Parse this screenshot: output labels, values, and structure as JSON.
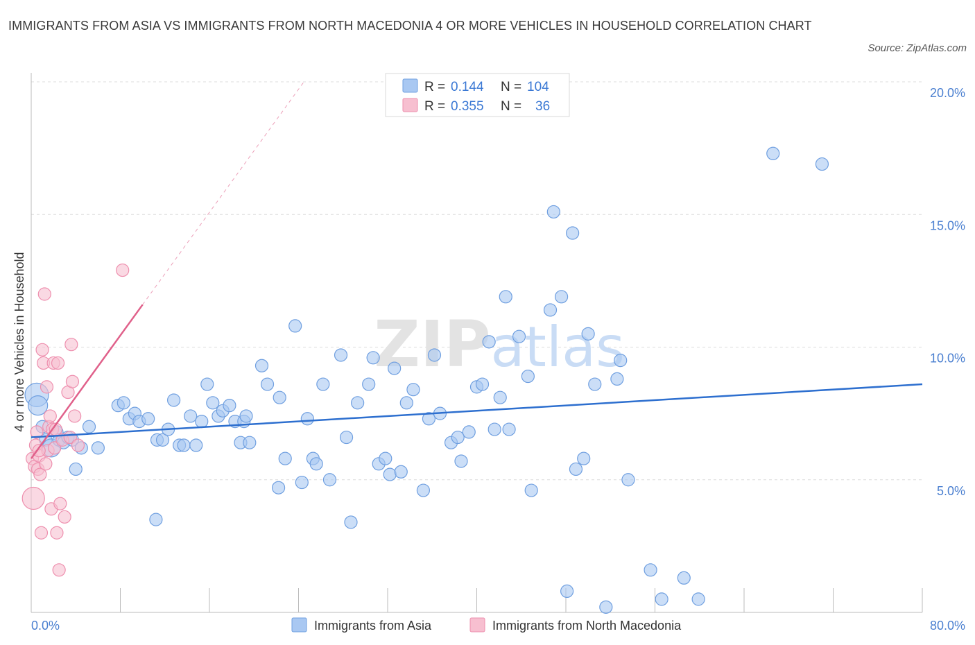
{
  "title": "IMMIGRANTS FROM ASIA VS IMMIGRANTS FROM NORTH MACEDONIA 4 OR MORE VEHICLES IN HOUSEHOLD CORRELATION CHART",
  "source": "Source: ZipAtlas.com",
  "watermark": "ZIPatlas",
  "colors": {
    "asia_fill": "#a9c8f2",
    "asia_stroke": "#6f9fe0",
    "asia_line": "#2d6fcf",
    "macedonia_fill": "#f7bfd0",
    "macedonia_stroke": "#ee8fae",
    "macedonia_line": "#e0608a",
    "tick_label": "#4a7fd0"
  },
  "legend": {
    "row1": {
      "r_label": "R =",
      "r_value": "0.144",
      "n_label": "N =",
      "n_value": "104"
    },
    "row2": {
      "r_label": "R =",
      "r_value": "0.355",
      "n_label": "N =",
      "n_value": "36"
    }
  },
  "bottom_legend": {
    "asia": "Immigrants from Asia",
    "macedonia": "Immigrants from North Macedonia"
  },
  "chart_data": {
    "type": "scatter",
    "title": "IMMIGRANTS FROM ASIA VS IMMIGRANTS FROM NORTH MACEDONIA 4 OR MORE VEHICLES IN HOUSEHOLD CORRELATION CHART",
    "xlabel": "",
    "ylabel": "4 or more Vehicles in Household",
    "xlim": [
      0,
      80
    ],
    "ylim": [
      0,
      20
    ],
    "x_tick_labels": [
      "0.0%",
      "80.0%"
    ],
    "y_ticks": [
      5,
      10,
      15,
      20
    ],
    "y_tick_labels": [
      "5.0%",
      "10.0%",
      "15.0%",
      "20.0%"
    ],
    "grid": true,
    "legend_position": "top-center",
    "series": [
      {
        "name": "Immigrants from Asia",
        "R": 0.144,
        "N": 104,
        "trend": {
          "x": [
            0,
            80
          ],
          "y": [
            6.6,
            8.6
          ]
        },
        "points": [
          [
            0.5,
            8.2
          ],
          [
            0.6,
            7.8
          ],
          [
            1.0,
            7.0
          ],
          [
            1.3,
            6.5
          ],
          [
            1.8,
            6.2
          ],
          [
            2.3,
            6.8
          ],
          [
            2.5,
            6.5
          ],
          [
            2.9,
            6.4
          ],
          [
            3.3,
            6.6
          ],
          [
            3.7,
            6.5
          ],
          [
            4.0,
            5.4
          ],
          [
            4.5,
            6.2
          ],
          [
            5.2,
            7.0
          ],
          [
            6.0,
            6.2
          ],
          [
            7.8,
            7.8
          ],
          [
            8.3,
            7.9
          ],
          [
            8.8,
            7.3
          ],
          [
            9.3,
            7.5
          ],
          [
            9.7,
            7.2
          ],
          [
            10.5,
            7.3
          ],
          [
            11.2,
            3.5
          ],
          [
            11.3,
            6.5
          ],
          [
            11.8,
            6.5
          ],
          [
            12.3,
            6.9
          ],
          [
            12.8,
            8.0
          ],
          [
            13.3,
            6.3
          ],
          [
            13.7,
            6.3
          ],
          [
            14.3,
            7.4
          ],
          [
            14.8,
            6.3
          ],
          [
            15.3,
            7.2
          ],
          [
            15.8,
            8.6
          ],
          [
            16.3,
            7.9
          ],
          [
            16.8,
            7.4
          ],
          [
            17.2,
            7.6
          ],
          [
            17.8,
            7.8
          ],
          [
            18.3,
            7.2
          ],
          [
            18.8,
            6.4
          ],
          [
            19.1,
            7.2
          ],
          [
            19.3,
            7.4
          ],
          [
            19.6,
            6.4
          ],
          [
            20.7,
            9.3
          ],
          [
            21.2,
            8.6
          ],
          [
            22.2,
            4.7
          ],
          [
            22.3,
            8.1
          ],
          [
            22.8,
            5.8
          ],
          [
            23.7,
            10.8
          ],
          [
            24.3,
            4.9
          ],
          [
            24.8,
            7.3
          ],
          [
            25.3,
            5.8
          ],
          [
            25.6,
            5.6
          ],
          [
            26.2,
            8.6
          ],
          [
            26.8,
            5.0
          ],
          [
            27.8,
            9.7
          ],
          [
            28.3,
            6.6
          ],
          [
            28.7,
            3.4
          ],
          [
            29.3,
            7.9
          ],
          [
            30.3,
            8.6
          ],
          [
            30.7,
            9.6
          ],
          [
            31.2,
            5.6
          ],
          [
            31.8,
            5.8
          ],
          [
            32.2,
            5.2
          ],
          [
            32.6,
            9.2
          ],
          [
            33.2,
            5.3
          ],
          [
            33.7,
            7.9
          ],
          [
            34.3,
            8.4
          ],
          [
            35.2,
            4.6
          ],
          [
            35.7,
            7.3
          ],
          [
            36.2,
            9.7
          ],
          [
            36.7,
            7.5
          ],
          [
            37.7,
            6.4
          ],
          [
            38.3,
            6.6
          ],
          [
            38.6,
            5.7
          ],
          [
            39.3,
            6.8
          ],
          [
            40.0,
            8.5
          ],
          [
            40.5,
            8.6
          ],
          [
            41.1,
            10.2
          ],
          [
            41.6,
            6.9
          ],
          [
            42.1,
            8.1
          ],
          [
            42.6,
            11.9
          ],
          [
            42.9,
            6.9
          ],
          [
            43.8,
            10.4
          ],
          [
            44.6,
            8.9
          ],
          [
            44.9,
            4.6
          ],
          [
            46.6,
            11.4
          ],
          [
            46.9,
            15.1
          ],
          [
            47.6,
            11.9
          ],
          [
            48.1,
            0.8
          ],
          [
            48.6,
            14.3
          ],
          [
            48.9,
            5.4
          ],
          [
            49.6,
            5.8
          ],
          [
            50.0,
            10.5
          ],
          [
            50.6,
            8.6
          ],
          [
            51.6,
            0.2
          ],
          [
            52.6,
            8.8
          ],
          [
            52.9,
            9.5
          ],
          [
            53.6,
            5.0
          ],
          [
            55.6,
            1.6
          ],
          [
            56.6,
            0.5
          ],
          [
            58.6,
            1.3
          ],
          [
            59.9,
            0.5
          ],
          [
            66.6,
            17.3
          ],
          [
            71.0,
            16.9
          ]
        ]
      },
      {
        "name": "Immigrants from North Macedonia",
        "R": 0.355,
        "N": 36,
        "trend": {
          "x": [
            0,
            10
          ],
          "y": [
            5.8,
            11.6
          ]
        },
        "points": [
          [
            0.1,
            5.8
          ],
          [
            0.2,
            4.3
          ],
          [
            0.3,
            5.5
          ],
          [
            0.4,
            6.3
          ],
          [
            0.5,
            6.8
          ],
          [
            0.6,
            5.4
          ],
          [
            0.7,
            5.9
          ],
          [
            0.8,
            5.2
          ],
          [
            0.9,
            3.0
          ],
          [
            1.0,
            9.9
          ],
          [
            1.1,
            9.4
          ],
          [
            1.2,
            12.0
          ],
          [
            1.3,
            5.6
          ],
          [
            1.5,
            6.1
          ],
          [
            1.6,
            7.0
          ],
          [
            1.7,
            7.4
          ],
          [
            1.8,
            3.9
          ],
          [
            1.9,
            6.9
          ],
          [
            2.0,
            9.4
          ],
          [
            2.1,
            6.2
          ],
          [
            2.2,
            6.9
          ],
          [
            2.3,
            3.0
          ],
          [
            2.4,
            9.4
          ],
          [
            2.5,
            1.6
          ],
          [
            2.6,
            4.1
          ],
          [
            2.8,
            6.5
          ],
          [
            3.0,
            3.6
          ],
          [
            3.3,
            8.3
          ],
          [
            3.5,
            6.6
          ],
          [
            3.6,
            10.1
          ],
          [
            3.7,
            8.7
          ],
          [
            3.9,
            7.4
          ],
          [
            4.2,
            6.3
          ],
          [
            0.7,
            6.1
          ],
          [
            1.4,
            8.5
          ],
          [
            8.2,
            12.9
          ]
        ]
      }
    ]
  }
}
